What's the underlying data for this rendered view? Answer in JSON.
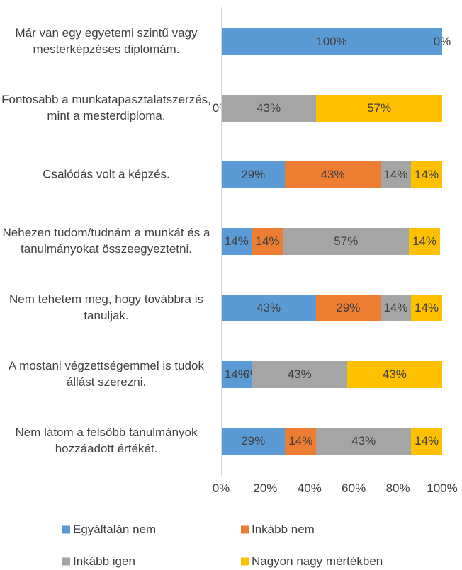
{
  "chart_data": {
    "type": "stacked_barh",
    "categories": [
      "Már van egy egyetemi szintű vagy mesterképzéses diplomám.",
      "Fontosabb a munkatapasztalatszerzés, mint a mesterdiploma.",
      "Csalódás volt a képzés.",
      "Nehezen tudom/tudnám a munkát és a tanulmányokat összeegyeztetni.",
      "Nem tehetem meg, hogy továbbra is tanuljak.",
      "A mostani végzettségemmel is tudok állást szerezni.",
      "Nem látom a felsőbb tanulmányok hozzáadott értékét."
    ],
    "series": [
      {
        "name": "Egyáltalán nem",
        "color": "#5b9bd5",
        "values": [
          100,
          0,
          29,
          14,
          43,
          14,
          29
        ],
        "value_labels": [
          "100%",
          "0%",
          "29%",
          "14%",
          "43%",
          "14%",
          "29%"
        ]
      },
      {
        "name": "Inkább nem",
        "color": "#ed7d31",
        "values": [
          null,
          null,
          43,
          14,
          29,
          0,
          14
        ],
        "value_labels": [
          null,
          null,
          "43%",
          "14%",
          "29%",
          "0%",
          "14%"
        ]
      },
      {
        "name": "Inkább igen",
        "color": "#a5a5a5",
        "values": [
          null,
          43,
          14,
          57,
          14,
          43,
          43
        ],
        "value_labels": [
          null,
          "43%",
          "14%",
          "57%",
          "14%",
          "43%",
          "43%"
        ]
      },
      {
        "name": "Nagyon nagy mértékben",
        "color": "#ffc000",
        "values": [
          0,
          57,
          14,
          14,
          14,
          43,
          14
        ],
        "value_labels": [
          "0%",
          "57%",
          "14%",
          "14%",
          "14%",
          "43%",
          "14%"
        ]
      }
    ],
    "xlim": [
      0,
      100
    ],
    "xticks": [
      {
        "value": 0,
        "label": "0%"
      },
      {
        "value": 20,
        "label": "20%"
      },
      {
        "value": 40,
        "label": "40%"
      },
      {
        "value": 60,
        "label": "60%"
      },
      {
        "value": 80,
        "label": "80%"
      },
      {
        "value": 100,
        "label": "100%"
      }
    ],
    "legend": "bottom"
  }
}
